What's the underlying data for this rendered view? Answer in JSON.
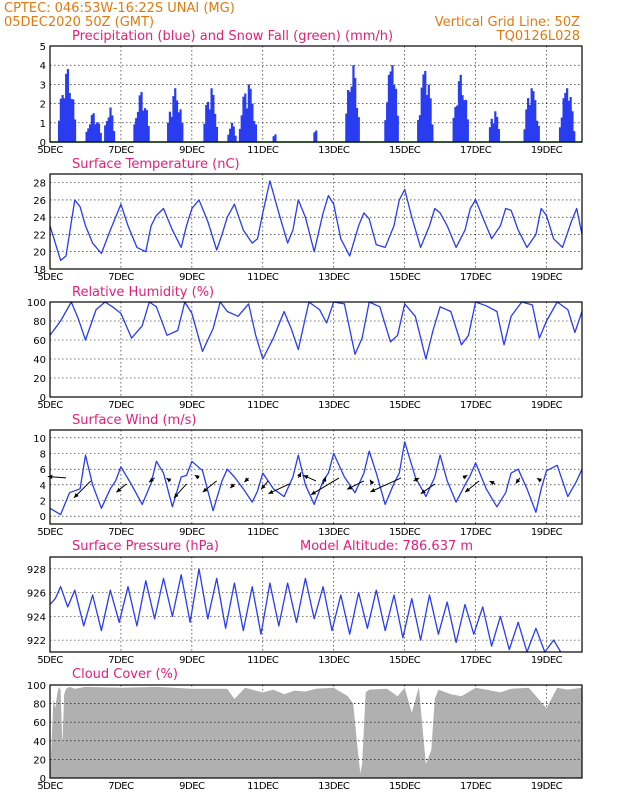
{
  "header": {
    "line1_left": "CPTEC:   046:53W-16:22S   UNAI (MG)",
    "line2_left": "05DEC2020 50Z (GMT)",
    "line2_right": "Vertical Grid Line: 50Z",
    "line3_right": "TQ0126L028"
  },
  "x_axis": {
    "days_from_start": [
      0,
      2,
      4,
      6,
      8,
      10,
      12,
      14
    ],
    "tick_labels": [
      "5DEC",
      "7DEC",
      "9DEC",
      "11DEC",
      "13DEC",
      "15DEC",
      "17DEC",
      "19DEC"
    ],
    "range_days": [
      0,
      15
    ]
  },
  "colors": {
    "header": "#e07a10",
    "title": "#e0207a",
    "line": "#2a3cf0",
    "bars": "#2a3cf0",
    "snow": "#18a018",
    "cloud": "#b0b0b0"
  },
  "chart_data": [
    {
      "type": "bar",
      "title": "Precipitation (blue) and Snow Fall (green) (mm/h)",
      "ylim": [
        0,
        5
      ],
      "yticks": [
        0,
        1,
        2,
        3,
        4,
        5
      ],
      "snow_value": 0,
      "events": [
        {
          "day": 0.45,
          "peak": 3.8,
          "width": 0.55
        },
        {
          "day": 1.2,
          "peak": 1.5,
          "width": 0.5
        },
        {
          "day": 1.65,
          "peak": 1.8,
          "width": 0.35
        },
        {
          "day": 2.55,
          "peak": 2.6,
          "width": 0.5
        },
        {
          "day": 3.5,
          "peak": 2.8,
          "width": 0.5
        },
        {
          "day": 4.5,
          "peak": 2.8,
          "width": 0.45
        },
        {
          "day": 5.1,
          "peak": 1.0,
          "width": 0.3
        },
        {
          "day": 5.55,
          "peak": 3.0,
          "width": 0.55
        },
        {
          "day": 6.3,
          "peak": 0.4,
          "width": 0.15
        },
        {
          "day": 7.45,
          "peak": 0.6,
          "width": 0.15
        },
        {
          "day": 8.5,
          "peak": 4.0,
          "width": 0.45
        },
        {
          "day": 9.6,
          "peak": 4.0,
          "width": 0.45
        },
        {
          "day": 10.55,
          "peak": 3.7,
          "width": 0.5
        },
        {
          "day": 11.55,
          "peak": 3.5,
          "width": 0.5
        },
        {
          "day": 12.5,
          "peak": 1.6,
          "width": 0.35
        },
        {
          "day": 13.55,
          "peak": 2.8,
          "width": 0.5
        },
        {
          "day": 14.55,
          "peak": 2.8,
          "width": 0.5
        }
      ]
    },
    {
      "type": "line",
      "title": "Surface Temperature (nC)",
      "ylim": [
        18,
        29
      ],
      "yticks": [
        18,
        20,
        22,
        24,
        26,
        28
      ],
      "x_days": [
        0,
        0.15,
        0.3,
        0.45,
        0.7,
        0.85,
        1,
        1.2,
        1.45,
        1.7,
        1.85,
        2,
        2.2,
        2.45,
        2.7,
        2.85,
        3,
        3.2,
        3.45,
        3.7,
        3.85,
        4,
        4.2,
        4.45,
        4.7,
        4.85,
        5,
        5.2,
        5.45,
        5.7,
        5.85,
        6,
        6.2,
        6.45,
        6.7,
        6.85,
        7,
        7.2,
        7.45,
        7.7,
        7.85,
        8,
        8.2,
        8.45,
        8.7,
        8.85,
        9,
        9.2,
        9.45,
        9.7,
        9.85,
        10,
        10.2,
        10.45,
        10.7,
        10.85,
        11,
        11.2,
        11.45,
        11.7,
        11.85,
        12,
        12.2,
        12.45,
        12.7,
        12.85,
        13,
        13.2,
        13.45,
        13.7,
        13.85,
        14,
        14.2,
        14.45,
        14.7,
        14.85,
        15
      ],
      "values": [
        23,
        21,
        19,
        19.5,
        26,
        25.2,
        23,
        21,
        19.8,
        22.5,
        24,
        25.5,
        23,
        20.5,
        20,
        23,
        24.2,
        25,
        22.5,
        20.5,
        23,
        25,
        26,
        23.5,
        20.2,
        22,
        24,
        25.5,
        22.5,
        21,
        21.5,
        24.5,
        28.2,
        24.5,
        21,
        22.5,
        26,
        24,
        20,
        24.5,
        26.5,
        25.5,
        21.5,
        19.5,
        23,
        24.5,
        23.8,
        20.8,
        20.5,
        23,
        26,
        27.2,
        24,
        20.5,
        23,
        25,
        24.5,
        23,
        20.5,
        22.5,
        25,
        26,
        24,
        21.5,
        23,
        25,
        24.8,
        22.5,
        20.5,
        22,
        25,
        24.2,
        21.5,
        20.5,
        23.5,
        25,
        22
      ],
      "line_color": "#2a3cf0"
    },
    {
      "type": "line",
      "title": "Relative Humidity (%)",
      "ylim": [
        0,
        100
      ],
      "yticks": [
        0,
        20,
        40,
        60,
        80,
        100
      ],
      "x_days": [
        0,
        0.3,
        0.6,
        0.8,
        1,
        1.3,
        1.55,
        1.8,
        2,
        2.3,
        2.6,
        2.8,
        3,
        3.3,
        3.6,
        3.8,
        4,
        4.3,
        4.6,
        4.8,
        5,
        5.3,
        5.6,
        5.8,
        6,
        6.3,
        6.6,
        6.8,
        7,
        7.3,
        7.6,
        7.8,
        8,
        8.3,
        8.6,
        8.8,
        9,
        9.3,
        9.6,
        9.8,
        10,
        10.3,
        10.6,
        10.8,
        11,
        11.3,
        11.6,
        11.8,
        12,
        12.3,
        12.6,
        12.8,
        13,
        13.3,
        13.6,
        13.8,
        14,
        14.3,
        14.6,
        14.8,
        15
      ],
      "values": [
        65,
        80,
        100,
        82,
        60,
        92,
        100,
        94,
        88,
        62,
        75,
        100,
        95,
        65,
        70,
        100,
        88,
        48,
        72,
        100,
        90,
        85,
        98,
        65,
        40,
        62,
        90,
        72,
        50,
        100,
        92,
        78,
        100,
        98,
        45,
        62,
        100,
        95,
        58,
        65,
        98,
        85,
        40,
        70,
        95,
        90,
        55,
        65,
        100,
        96,
        90,
        55,
        85,
        100,
        97,
        62,
        80,
        100,
        92,
        68,
        90
      ],
      "line_color": "#2a3cf0"
    },
    {
      "type": "line",
      "title": "Surface Wind (m/s)",
      "ylim": [
        -1,
        11
      ],
      "yticks": [
        0,
        2,
        4,
        6,
        8,
        10
      ],
      "x_days": [
        0,
        0.3,
        0.55,
        0.85,
        1,
        1.2,
        1.45,
        1.7,
        1.85,
        2,
        2.3,
        2.6,
        2.85,
        3,
        3.2,
        3.45,
        3.7,
        3.85,
        4,
        4.3,
        4.6,
        4.85,
        5,
        5.2,
        5.45,
        5.7,
        5.85,
        6,
        6.3,
        6.6,
        6.85,
        7,
        7.2,
        7.45,
        7.7,
        7.85,
        8,
        8.3,
        8.6,
        8.85,
        9,
        9.2,
        9.45,
        9.7,
        9.85,
        10,
        10.3,
        10.6,
        10.85,
        11,
        11.2,
        11.45,
        11.7,
        11.85,
        12,
        12.3,
        12.6,
        12.85,
        13,
        13.2,
        13.45,
        13.7,
        13.85,
        14,
        14.3,
        14.6,
        14.85,
        15
      ],
      "values": [
        1,
        0.2,
        3,
        3.5,
        7.8,
        4,
        1,
        3.5,
        4.5,
        6.3,
        4,
        1.5,
        4.2,
        7,
        5.5,
        1.2,
        5,
        5.2,
        7,
        5.8,
        0.7,
        4.5,
        6,
        5,
        3.5,
        1.8,
        3.2,
        5.5,
        3.5,
        2.5,
        5,
        7.8,
        4,
        1.5,
        4.5,
        5.5,
        8,
        5,
        3,
        5.5,
        8.3,
        5.5,
        1.5,
        4.2,
        5.5,
        9.5,
        5,
        2.5,
        5,
        7.8,
        4.5,
        1.8,
        4,
        5.2,
        6.8,
        3.5,
        1.2,
        3,
        5.5,
        6,
        3.5,
        0.5,
        3.5,
        5.8,
        6.5,
        2.5,
        4.5,
        6
      ],
      "line_color": "#2a3cf0",
      "arrows": [
        {
          "day": 0.45,
          "u": -1.3,
          "v": 0.1
        },
        {
          "day": 1.15,
          "u": -1.2,
          "v": -1.2
        },
        {
          "day": 2.15,
          "u": -0.7,
          "v": -0.6
        },
        {
          "day": 2.95,
          "u": -0.4,
          "v": -0.3
        },
        {
          "day": 3.4,
          "u": -0.3,
          "v": 0.2
        },
        {
          "day": 3.85,
          "u": -0.9,
          "v": -1.0
        },
        {
          "day": 4.2,
          "u": -0.3,
          "v": 0.2
        },
        {
          "day": 4.7,
          "u": -1.0,
          "v": -0.8
        },
        {
          "day": 5.2,
          "u": -0.3,
          "v": -0.3
        },
        {
          "day": 5.6,
          "u": -0.3,
          "v": -0.3
        },
        {
          "day": 6.15,
          "u": -0.5,
          "v": -0.6
        },
        {
          "day": 6.75,
          "u": -1.5,
          "v": -0.7
        },
        {
          "day": 7.0,
          "u": 0.2,
          "v": 0.4
        },
        {
          "day": 7.5,
          "u": -0.9,
          "v": 0.4
        },
        {
          "day": 7.7,
          "u": 0.2,
          "v": 0.5
        },
        {
          "day": 8.15,
          "u": -2.0,
          "v": -1.2
        },
        {
          "day": 8.85,
          "u": -1.2,
          "v": -0.6
        },
        {
          "day": 9.1,
          "u": -0.2,
          "v": 0.3
        },
        {
          "day": 9.9,
          "u": -2.2,
          "v": -1.0
        },
        {
          "day": 10.25,
          "u": 0.4,
          "v": 0.2
        },
        {
          "day": 10.85,
          "u": -1.0,
          "v": -0.7
        },
        {
          "day": 11.65,
          "u": 0.3,
          "v": 0.2
        },
        {
          "day": 12.1,
          "u": -1.0,
          "v": -0.8
        },
        {
          "day": 12.55,
          "u": -0.4,
          "v": 0.2
        },
        {
          "day": 13.25,
          "u": -0.3,
          "v": -0.4
        },
        {
          "day": 13.85,
          "u": -0.3,
          "v": 0.2
        }
      ]
    },
    {
      "type": "line",
      "title": "Surface Pressure (hPa)",
      "annotation": "Model Altitude: 786.637 m",
      "ylim": [
        921,
        929
      ],
      "yticks": [
        922,
        924,
        926,
        928
      ],
      "x_days": [
        0,
        0.15,
        0.3,
        0.5,
        0.7,
        0.95,
        1.2,
        1.45,
        1.7,
        1.95,
        2.2,
        2.45,
        2.7,
        2.95,
        3.2,
        3.45,
        3.7,
        3.95,
        4.2,
        4.45,
        4.7,
        4.95,
        5.2,
        5.45,
        5.7,
        5.95,
        6.2,
        6.45,
        6.7,
        6.95,
        7.2,
        7.45,
        7.7,
        7.95,
        8.2,
        8.45,
        8.7,
        8.95,
        9.2,
        9.45,
        9.7,
        9.95,
        10.2,
        10.45,
        10.7,
        10.95,
        11.2,
        11.45,
        11.7,
        11.95,
        12.2,
        12.45,
        12.7,
        12.95,
        13.2,
        13.45,
        13.7,
        13.95,
        14.2,
        14.4
      ],
      "values": [
        925,
        925.5,
        926.5,
        924.8,
        926.2,
        923.2,
        925.8,
        922.8,
        926.2,
        923.5,
        926.5,
        923.2,
        927.0,
        923.8,
        927.2,
        924.0,
        927.5,
        923.5,
        928.0,
        923.8,
        927.2,
        923.0,
        926.8,
        922.8,
        926.5,
        922.5,
        926.8,
        923.2,
        926.8,
        923.5,
        927.2,
        923.8,
        926.5,
        922.8,
        925.8,
        922.5,
        926.0,
        923.0,
        926.2,
        922.8,
        925.8,
        922.2,
        925.5,
        922.0,
        925.8,
        922.5,
        925.2,
        921.8,
        925.0,
        922.5,
        924.8,
        921.5,
        924.0,
        921.2,
        923.5,
        921.0,
        923.0,
        921.0,
        922.0,
        921.0
      ],
      "line_color": "#2a3cf0"
    },
    {
      "type": "area",
      "title": "Cloud Cover (%)",
      "ylim": [
        0,
        100
      ],
      "yticks": [
        0,
        20,
        40,
        60,
        80,
        100
      ],
      "x_days": [
        0,
        0.1,
        0.15,
        0.2,
        0.25,
        0.3,
        0.35,
        0.4,
        0.45,
        0.55,
        0.7,
        1,
        2,
        3,
        4,
        5,
        5.2,
        5.5,
        6,
        6.3,
        6.6,
        6.9,
        7.2,
        7.5,
        8,
        8.4,
        8.55,
        8.65,
        8.75,
        8.8,
        8.9,
        9,
        9.5,
        9.8,
        10,
        10.2,
        10.4,
        10.5,
        10.6,
        10.75,
        10.85,
        10.95,
        11.3,
        11.6,
        12,
        12.3,
        12.7,
        13,
        13.5,
        14,
        14.3,
        14.6,
        15
      ],
      "values": [
        0,
        85,
        75,
        90,
        98,
        95,
        35,
        90,
        96,
        98,
        96,
        98,
        97,
        98,
        96,
        96,
        85,
        97,
        92,
        95,
        90,
        94,
        93,
        96,
        97,
        88,
        80,
        40,
        5,
        15,
        92,
        95,
        96,
        88,
        97,
        70,
        98,
        55,
        15,
        30,
        85,
        95,
        90,
        88,
        97,
        95,
        92,
        96,
        97,
        75,
        97,
        95,
        97
      ],
      "fill_color": "#b0b0b0"
    }
  ]
}
